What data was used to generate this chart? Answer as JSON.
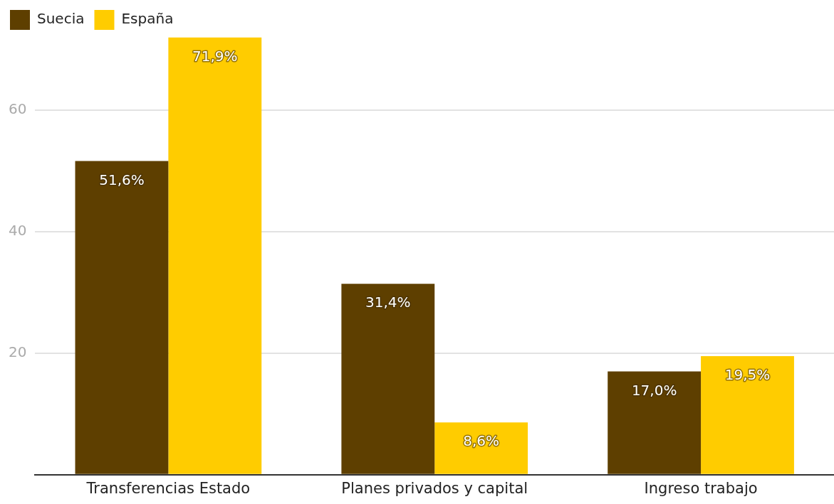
{
  "chart_data": {
    "type": "bar",
    "categories": [
      "Transferencias Estado",
      "Planes privados y capital",
      "Ingreso trabajo"
    ],
    "series": [
      {
        "name": "Suecia",
        "color": "#5e3f00",
        "values": [
          51.6,
          31.4,
          17.0
        ],
        "value_labels": [
          "51,6%",
          "31,4%",
          "17,0%"
        ]
      },
      {
        "name": "España",
        "color": "#ffcc00",
        "values": [
          71.9,
          8.6,
          19.5
        ],
        "value_labels": [
          "71,9%",
          "8,6%",
          "19,5%"
        ]
      }
    ],
    "ylim": [
      0,
      72
    ],
    "yticks": [
      {
        "value": 0,
        "label": null
      },
      20,
      40,
      60
    ],
    "grid": "y",
    "legend": "top left"
  }
}
